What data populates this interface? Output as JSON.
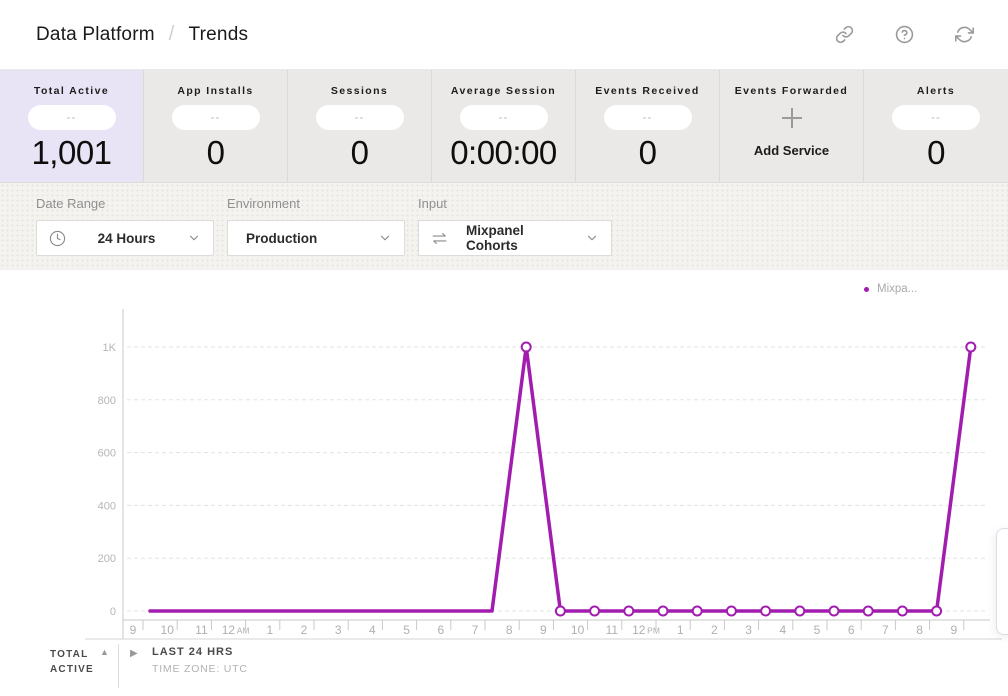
{
  "header": {
    "breadcrumb": {
      "section": "Data Platform",
      "separator": "/",
      "page": "Trends"
    },
    "icons": [
      "link-icon",
      "help-icon",
      "refresh-icon"
    ]
  },
  "stats": {
    "cards": [
      {
        "label": "Total Active",
        "badge": "--",
        "value": "1,001",
        "selected": true
      },
      {
        "label": "App Installs",
        "badge": "--",
        "value": "0"
      },
      {
        "label": "Sessions",
        "badge": "--",
        "value": "0"
      },
      {
        "label": "Average Session",
        "badge": "--",
        "value": "0:00:00"
      },
      {
        "label": "Events Received",
        "badge": "--",
        "value": "0"
      },
      {
        "label": "Events Forwarded",
        "action_label": "Add Service",
        "icon": "plus-icon"
      },
      {
        "label": "Alerts",
        "badge": "--",
        "value": "0"
      }
    ]
  },
  "filters": [
    {
      "label": "Date Range",
      "value": "24 Hours",
      "icon": "clock-icon"
    },
    {
      "label": "Environment",
      "value": "Production"
    },
    {
      "label": "Input",
      "value": "Mixpanel Cohorts",
      "icon": "swap-arrows-icon"
    }
  ],
  "chart": {
    "legend": {
      "label": "Mixpa...",
      "color": "#A21CAF"
    }
  },
  "chart_data": {
    "type": "line",
    "title": "",
    "xlabel": "",
    "ylabel": "",
    "categories": [
      "9",
      "10",
      "11",
      "12 AM",
      "1",
      "2",
      "3",
      "4",
      "5",
      "6",
      "7",
      "8",
      "9",
      "10",
      "11",
      "12 PM",
      "1",
      "2",
      "3",
      "4",
      "5",
      "6",
      "7",
      "8",
      "9"
    ],
    "series": [
      {
        "name": "Mixpanel Cohorts",
        "color": "#A21CAF",
        "values": [
          0,
          0,
          0,
          0,
          0,
          0,
          0,
          0,
          0,
          0,
          0,
          1000,
          0,
          0,
          0,
          0,
          0,
          0,
          0,
          0,
          0,
          0,
          0,
          0,
          1000
        ]
      }
    ],
    "ylim": [
      0,
      1000
    ],
    "y_ticks": [
      {
        "label": "1K",
        "value": 1000
      },
      {
        "label": "800",
        "value": 800
      },
      {
        "label": "600",
        "value": 600
      },
      {
        "label": "400",
        "value": 400
      },
      {
        "label": "200",
        "value": 200
      },
      {
        "label": "0",
        "value": 0
      }
    ],
    "grid": "dashed-horizontal",
    "legend_position": "top-right",
    "markers_from_index": 11
  },
  "footer": {
    "metric_line1": "TOTAL",
    "metric_line2": "ACTIVE",
    "range_label": "LAST 24 HRS",
    "timezone_label": "TIME ZONE: UTC"
  },
  "colors": {
    "accent_purple": "#A21CAF",
    "selected_card_bg": "#E8E3F5",
    "card_bg": "#EAE9E7",
    "filter_strip_bg": "#F4F3F0",
    "axis_gray": "#C9C9C9",
    "grid_gray": "#E3E3E3",
    "tick_label_gray": "#B5B5B4"
  }
}
